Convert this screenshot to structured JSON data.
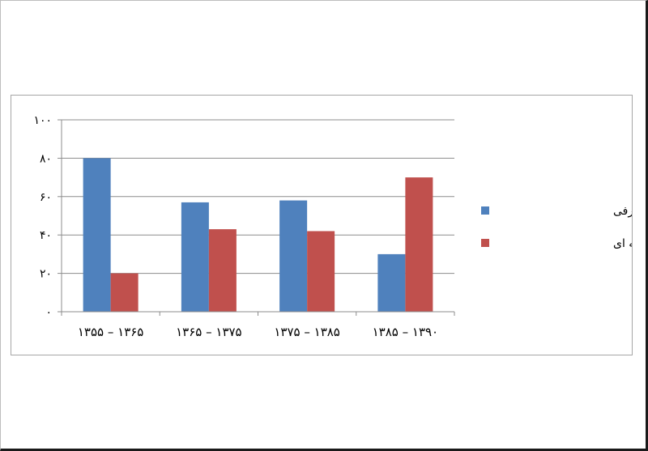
{
  "chart_data": {
    "type": "bar",
    "categories": [
      "۱۳۵۵ – ۱۳۶۵",
      "۱۳۶۵ – ۱۳۷۵",
      "۱۳۷۵ – ۱۳۸۵",
      "۱۳۸۵ – ۱۳۹۰"
    ],
    "series": [
      {
        "name": "سهم تقاضای مصرفی",
        "color": "#4f81bd",
        "values": [
          80,
          57,
          58,
          30
        ]
      },
      {
        "name": "سهم تقاضای سرمایه ای",
        "color": "#c0504d",
        "values": [
          20,
          43,
          42,
          70
        ]
      }
    ],
    "ylim": [
      0,
      100
    ],
    "yticks": [
      0,
      20,
      40,
      60,
      80,
      100
    ],
    "ytick_labels": [
      "۰",
      "۲۰",
      "۴۰",
      "۶۰",
      "۸۰",
      "۱۰۰"
    ],
    "grid": true,
    "legend": "right"
  }
}
